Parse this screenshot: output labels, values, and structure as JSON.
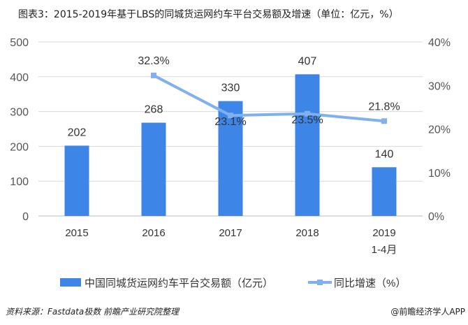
{
  "title": "图表3：2015-2019年基于LBS的同城货运网约车平台交易额及增速（单位：亿元，%）",
  "source": "资料来源：Fastdata极数 前瞻产业研究院整理",
  "credit": "@前瞻经济学人APP",
  "colors": {
    "bar": "#3d85e6",
    "line": "#80b0ee"
  },
  "chart_data": {
    "type": "bar+line",
    "categories": [
      "2015",
      "2016",
      "2017",
      "2018",
      "2019\n1-4月"
    ],
    "category_lines": [
      [
        "2015"
      ],
      [
        "2016"
      ],
      [
        "2017"
      ],
      [
        "2018"
      ],
      [
        "2019",
        "1-4月"
      ]
    ],
    "series": [
      {
        "name": "中国同城货运网约车平台交易额（亿元）",
        "type": "bar",
        "axis": "left",
        "values": [
          202,
          268,
          330,
          407,
          140
        ],
        "labels": [
          "202",
          "268",
          "330",
          "407",
          "140"
        ]
      },
      {
        "name": "同比增速（%）",
        "type": "line",
        "axis": "right",
        "values": [
          null,
          32.3,
          23.1,
          23.5,
          21.8
        ],
        "labels": [
          "",
          "32.3%",
          "23.1%",
          "23.5%",
          "21.8%"
        ]
      }
    ],
    "y_left": {
      "lim": [
        0,
        500
      ],
      "ticks": [
        "0",
        "100",
        "200",
        "300",
        "400",
        "500"
      ]
    },
    "y_right": {
      "lim": [
        0,
        40
      ],
      "ticks": [
        "0%",
        "10%",
        "20%",
        "30%",
        "40%"
      ]
    },
    "grid": true,
    "legend": "bottom"
  }
}
